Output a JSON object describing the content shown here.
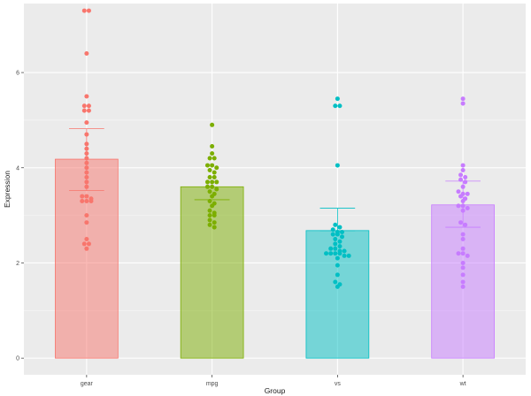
{
  "chart_data": {
    "type": "bar",
    "xlabel": "Group",
    "ylabel": "Expression",
    "ylim": [
      -0.35,
      7.45
    ],
    "y_ticks": [
      0,
      2,
      4,
      6
    ],
    "y_tick_labels": [
      "0",
      "2",
      "4",
      "6"
    ],
    "grid": true,
    "legend": "none",
    "categories": [
      "gear",
      "mpg",
      "vs",
      "wt"
    ],
    "series": [
      {
        "values": [
          4.18,
          3.6,
          2.68,
          3.22
        ],
        "error_upper": [
          4.82,
          3.33,
          3.15,
          3.72
        ],
        "error_lower": [
          3.52,
          3.33,
          2.68,
          2.75
        ],
        "colors": [
          "#F8766D",
          "#7CAE00",
          "#00BFC4",
          "#C77CFF"
        ]
      }
    ],
    "points": [
      [
        7.3,
        7.3,
        6.4,
        5.5,
        5.3,
        5.3,
        5.2,
        5.2,
        4.95,
        4.7,
        4.5,
        4.4,
        4.3,
        4.2,
        4.1,
        4.0,
        3.9,
        3.8,
        3.7,
        3.6,
        3.4,
        3.4,
        3.35,
        3.3,
        3.3,
        3.3,
        3.0,
        2.85,
        2.5,
        2.4,
        2.4,
        2.3
      ],
      [
        4.9,
        4.45,
        4.3,
        4.2,
        4.2,
        4.05,
        4.05,
        4.0,
        3.95,
        3.9,
        3.8,
        3.8,
        3.7,
        3.7,
        3.7,
        3.6,
        3.6,
        3.55,
        3.5,
        3.45,
        3.4,
        3.3,
        3.25,
        3.2,
        3.1,
        3.05,
        3.0,
        3.0,
        2.9,
        2.85,
        2.8,
        2.75
      ],
      [
        5.45,
        5.3,
        5.3,
        4.05,
        2.8,
        2.75,
        2.7,
        2.65,
        2.65,
        2.6,
        2.6,
        2.55,
        2.5,
        2.45,
        2.4,
        2.35,
        2.3,
        2.3,
        2.25,
        2.25,
        2.2,
        2.2,
        2.2,
        2.2,
        2.15,
        2.15,
        2.1,
        1.95,
        1.75,
        1.6,
        1.55,
        1.5
      ],
      [
        5.45,
        5.35,
        4.05,
        3.95,
        3.85,
        3.8,
        3.75,
        3.7,
        3.6,
        3.5,
        3.45,
        3.45,
        3.4,
        3.35,
        3.3,
        3.2,
        3.2,
        3.15,
        3.1,
        2.85,
        2.8,
        2.6,
        2.5,
        2.3,
        2.2,
        2.2,
        2.15,
        2.0,
        1.9,
        1.75,
        1.6,
        1.5
      ]
    ]
  }
}
